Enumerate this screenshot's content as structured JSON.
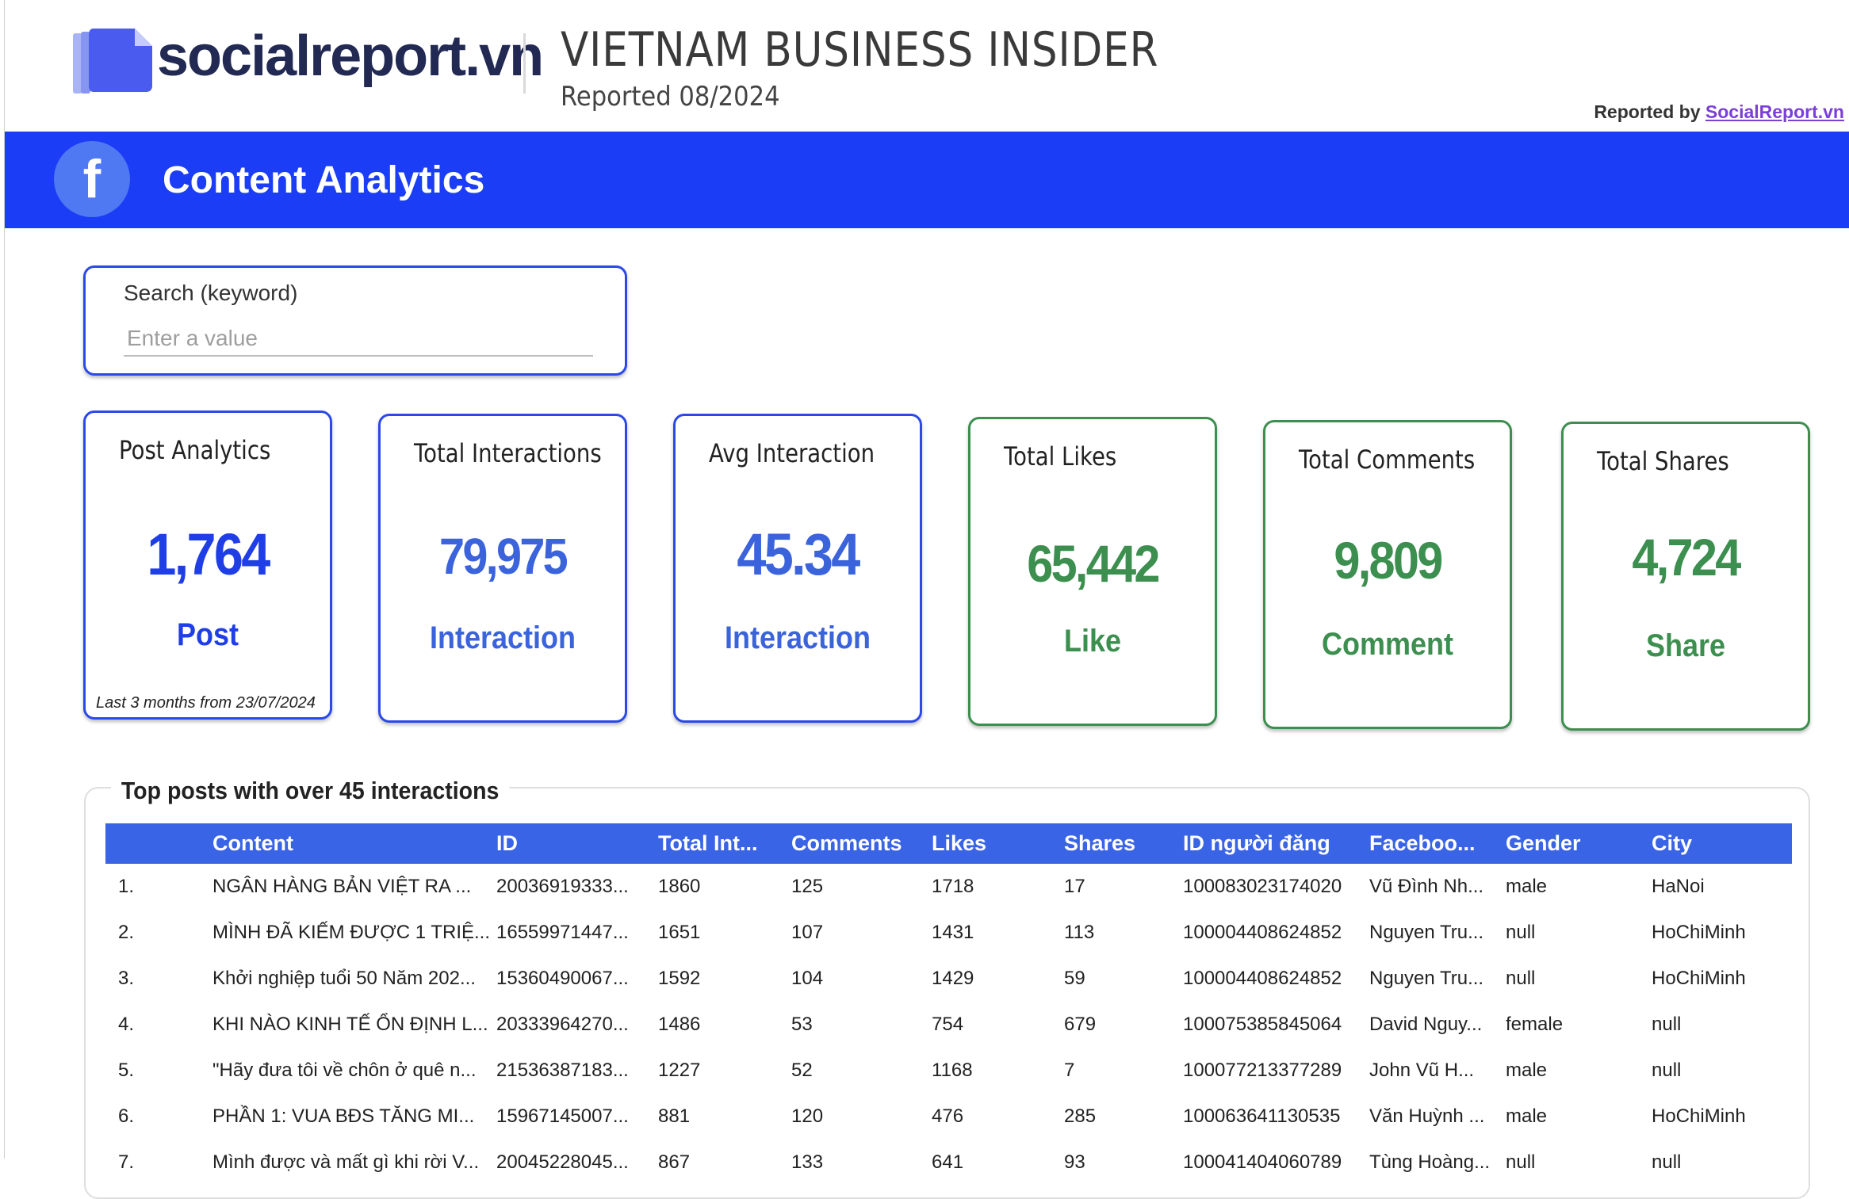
{
  "header": {
    "brand": "socialreport.vn",
    "title": "VIETNAM BUSINESS INSIDER",
    "subtitle": "Reported 08/2024",
    "reported_by_prefix": "Reported by",
    "reported_by_link": "SocialReport.vn"
  },
  "banner": {
    "icon": "facebook-icon",
    "title": "Content Analytics",
    "color": "#1a3df5"
  },
  "search": {
    "label": "Search (keyword)",
    "placeholder": "Enter a value",
    "value": ""
  },
  "cards": [
    {
      "title": "Post Analytics",
      "value": "1,764",
      "unit": "Post",
      "note": "Last 3 months from 23/07/2024"
    },
    {
      "title": "Total Interactions",
      "value": "79,975",
      "unit": "Interaction"
    },
    {
      "title": "Avg Interaction",
      "value": "45.34",
      "unit": "Interaction"
    },
    {
      "title": "Total Likes",
      "value": "65,442",
      "unit": "Like"
    },
    {
      "title": "Total Comments",
      "value": "9,809",
      "unit": "Comment"
    },
    {
      "title": "Total Shares",
      "value": "4,724",
      "unit": "Share"
    }
  ],
  "table": {
    "caption": "Top posts with over 45 interactions",
    "columns": [
      "Content",
      "ID",
      "Total Int...",
      "Comments",
      "Likes",
      "Shares",
      "ID người đăng",
      "Faceboo...",
      "Gender",
      "City"
    ],
    "rows": [
      [
        "1.",
        "NGÂN HÀNG BẢN VIỆT RA ...",
        "20036919333...",
        "1860",
        "125",
        "1718",
        "17",
        "100083023174020",
        "Vũ Đình Nh...",
        "male",
        "HaNoi"
      ],
      [
        "2.",
        "MÌNH ĐÃ KIẾM ĐƯỢC 1 TRIỆ...",
        "16559971447...",
        "1651",
        "107",
        "1431",
        "113",
        "100004408624852",
        "Nguyen Tru...",
        "null",
        "HoChiMinh"
      ],
      [
        "3.",
        "Khởi nghiệp tuổi 50 Năm 202...",
        "15360490067...",
        "1592",
        "104",
        "1429",
        "59",
        "100004408624852",
        "Nguyen Tru...",
        "null",
        "HoChiMinh"
      ],
      [
        "4.",
        "KHI NÀO KINH TẾ ỔN ĐỊNH L...",
        "20333964270...",
        "1486",
        "53",
        "754",
        "679",
        "100075385845064",
        "David Nguy...",
        "female",
        "null"
      ],
      [
        "5.",
        "\"Hãy đưa tôi về chôn ở quê n...",
        "21536387183...",
        "1227",
        "52",
        "1168",
        "7",
        "100077213377289",
        "John Vũ H...",
        "male",
        "null"
      ],
      [
        "6.",
        "PHẦN 1: VUA BĐS TĂNG MI...",
        "15967145007...",
        "881",
        "120",
        "476",
        "285",
        "100063641130535",
        "Văn Huỳnh ...",
        "male",
        "HoChiMinh"
      ],
      [
        "7.",
        "Mình được và mất gì khi rời V...",
        "20045228045...",
        "867",
        "133",
        "641",
        "93",
        "100041404060789",
        "Tùng Hoàng...",
        "null",
        "null"
      ]
    ]
  }
}
